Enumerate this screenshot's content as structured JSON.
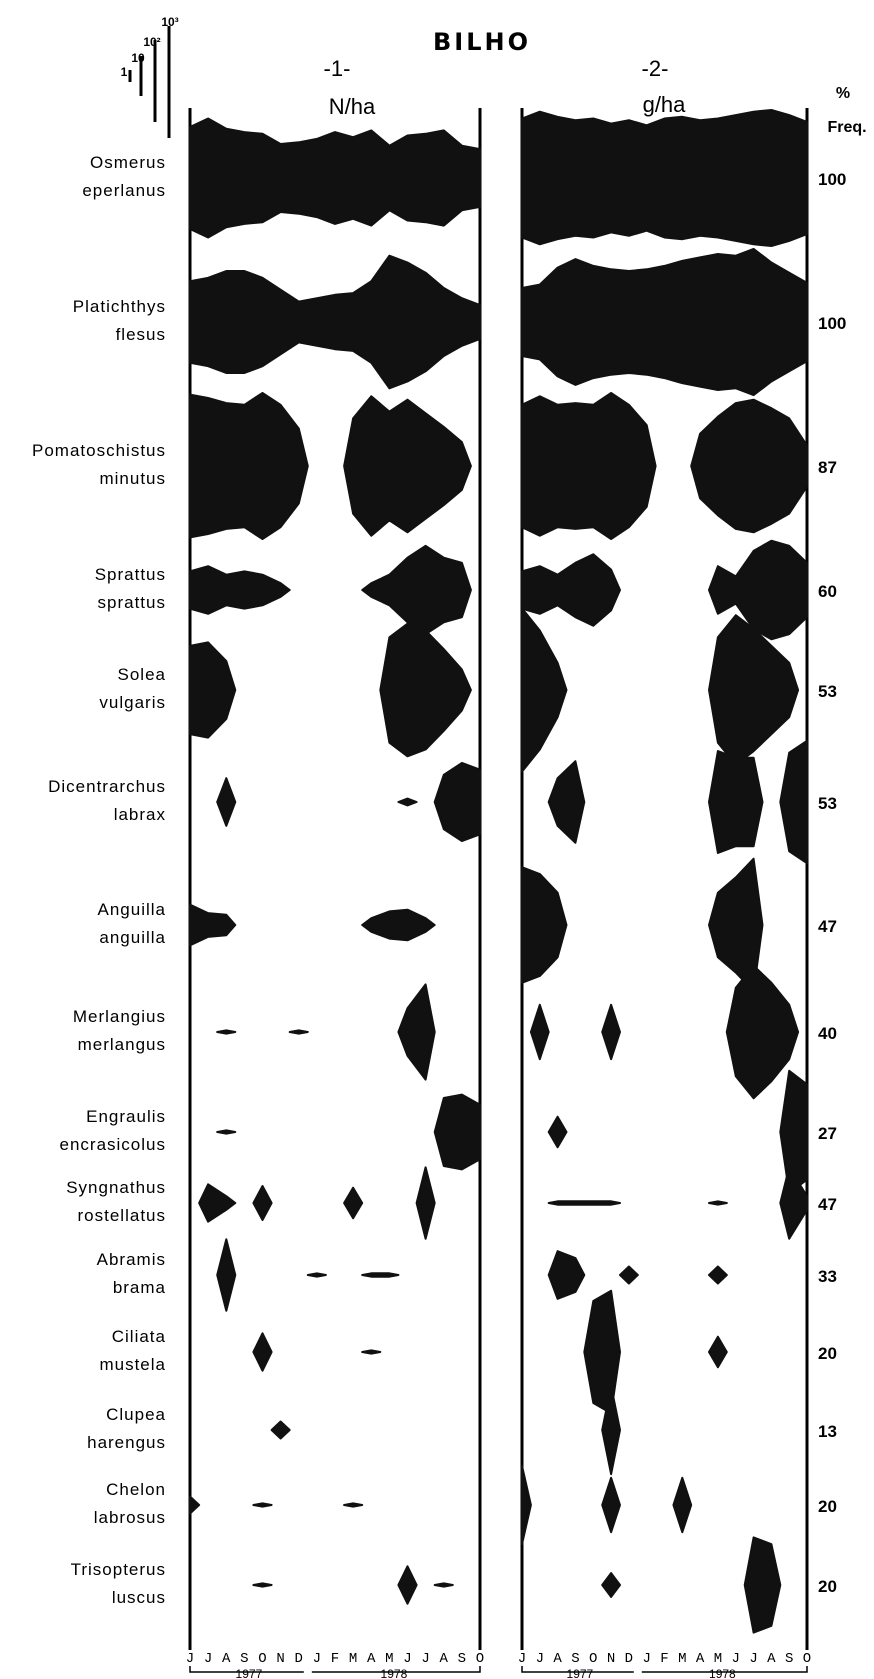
{
  "chart_data": {
    "type": "kite",
    "title": "BILHO",
    "scale_labels": [
      "1",
      "10",
      "10²",
      "10³"
    ],
    "panels": [
      {
        "number": "-1-",
        "unit_label": "N/ha",
        "years": [
          "1977",
          "1978"
        ]
      },
      {
        "number": "-2-",
        "unit_label": "g/ha",
        "years": [
          "1977",
          "1978"
        ]
      }
    ],
    "month_labels": [
      "J",
      "J",
      "A",
      "S",
      "O",
      "N",
      "D",
      "J",
      "F",
      "M",
      "A",
      "M",
      "J",
      "J",
      "A",
      "S",
      "O"
    ],
    "freq_header": [
      "%",
      "Freq."
    ],
    "species": [
      {
        "line1": "Osmerus",
        "line2": "eperlanus",
        "freq": "100",
        "n": [
          3.0,
          3.5,
          2.9,
          2.7,
          2.6,
          2.0,
          2.1,
          2.3,
          2.7,
          2.4,
          2.8,
          1.9,
          2.5,
          2.6,
          2.8,
          1.9,
          1.7
        ],
        "g": [
          3.5,
          3.9,
          3.6,
          3.4,
          3.5,
          3.2,
          3.4,
          3.1,
          3.5,
          3.6,
          3.4,
          3.5,
          3.7,
          3.9,
          4.0,
          3.7,
          3.3
        ]
      },
      {
        "line1": "Platichthys",
        "line2": "flesus",
        "freq": "100",
        "n": [
          2.4,
          2.6,
          3.0,
          3.0,
          2.6,
          1.9,
          1.2,
          1.4,
          1.6,
          1.7,
          2.4,
          3.9,
          3.5,
          2.9,
          2.0,
          1.4,
          1.0
        ],
        "g": [
          2.0,
          2.2,
          3.2,
          3.7,
          3.3,
          3.1,
          3.0,
          3.1,
          3.3,
          3.6,
          3.8,
          4.0,
          3.9,
          4.3,
          3.5,
          2.9,
          2.3
        ]
      },
      {
        "line1": "Pomatoschistus",
        "line2": "minutus",
        "freq": "87",
        "n": [
          4.2,
          4.0,
          3.7,
          3.6,
          4.3,
          3.6,
          2.2,
          0,
          0,
          2.8,
          4.1,
          3.2,
          3.9,
          3.1,
          2.3,
          1.4,
          0
        ],
        "g": [
          3.6,
          4.1,
          3.6,
          3.7,
          3.6,
          4.3,
          3.6,
          2.4,
          0,
          0,
          1.9,
          2.9,
          3.7,
          3.9,
          3.4,
          2.8,
          1.2
        ]
      },
      {
        "line1": "Sprattus",
        "line2": "sprattus",
        "freq": "60",
        "n": [
          1.1,
          1.4,
          0.9,
          1.1,
          0.9,
          0.4,
          0,
          0,
          0,
          0,
          0.4,
          0.9,
          1.9,
          2.6,
          1.9,
          1.6,
          0
        ],
        "g": [
          1.1,
          1.4,
          0.9,
          1.6,
          2.1,
          1.2,
          0,
          0,
          0,
          0,
          0,
          1.4,
          0.8,
          2.3,
          2.9,
          2.6,
          1.6
        ]
      },
      {
        "line1": "Solea",
        "line2": "vulgaris",
        "freq": "53",
        "n": [
          2.6,
          2.8,
          1.7,
          0,
          0,
          0,
          0,
          0,
          0,
          0,
          0,
          3.1,
          3.9,
          3.5,
          2.4,
          1.2,
          0
        ],
        "g": [
          4.8,
          3.5,
          1.6,
          0,
          0,
          0,
          0,
          0,
          0,
          0,
          0,
          3.1,
          4.4,
          3.6,
          2.6,
          1.6,
          0
        ]
      },
      {
        "line1": "Dicentrarchus",
        "line2": "labrax",
        "freq": "53",
        "n": [
          0,
          0,
          1.4,
          0,
          0,
          0,
          0,
          0,
          0,
          0,
          0,
          0,
          0.2,
          0,
          1.6,
          2.3,
          1.9
        ],
        "g": [
          0,
          0,
          1.4,
          2.4,
          0,
          0,
          0,
          0,
          0,
          0,
          0,
          3.0,
          2.6,
          2.6,
          0,
          2.9,
          3.6
        ]
      },
      {
        "line1": "Anguilla",
        "line2": "anguilla",
        "freq": "47",
        "n": [
          1.2,
          0.7,
          0.6,
          0,
          0,
          0,
          0,
          0,
          0,
          0,
          0.4,
          0.8,
          0.9,
          0.4,
          0,
          0,
          0
        ],
        "g": [
          3.4,
          3.0,
          1.9,
          0,
          0,
          0,
          0,
          0,
          0,
          0,
          0,
          1.9,
          2.8,
          3.9,
          0,
          0,
          0
        ]
      },
      {
        "line1": "Merlangius",
        "line2": "merlangus",
        "freq": "40",
        "n": [
          0,
          0,
          0.1,
          0,
          0,
          0,
          0.1,
          0,
          0,
          0,
          0,
          0,
          1.4,
          2.8,
          0,
          0,
          0
        ],
        "g": [
          0,
          1.6,
          0,
          0,
          0,
          1.6,
          0,
          0,
          0,
          0,
          0,
          0,
          2.6,
          3.9,
          2.9,
          1.6,
          0
        ]
      },
      {
        "line1": "Engraulis",
        "line2": "encrasicolus",
        "freq": "27",
        "n": [
          0,
          0,
          0.1,
          0,
          0,
          0,
          0,
          0,
          0,
          0,
          0,
          0,
          0,
          0,
          2.0,
          2.2,
          1.6
        ],
        "g": [
          0,
          0,
          0.9,
          0,
          0,
          0,
          0,
          0,
          0,
          0,
          0,
          0,
          0,
          0,
          0,
          3.6,
          2.8
        ]
      },
      {
        "line1": "Syngnathus",
        "line2": "rostellatus",
        "freq": "47",
        "n": [
          0,
          1.1,
          0.4,
          0,
          1.0,
          0,
          0,
          0,
          0,
          0.9,
          0,
          0,
          0,
          2.1,
          0,
          0,
          0
        ],
        "g": [
          0,
          0,
          0.1,
          0.1,
          0.1,
          0.1,
          0,
          0,
          0,
          0,
          0,
          0.1,
          0,
          0,
          0,
          2.1,
          0.4
        ]
      },
      {
        "line1": "Abramis",
        "line2": "brama",
        "freq": "33",
        "n": [
          0,
          0,
          2.1,
          0,
          0,
          0,
          0,
          0.1,
          0,
          0,
          0.1,
          0.1,
          0,
          0,
          0,
          0,
          0
        ],
        "g": [
          0,
          0,
          1.4,
          1.0,
          0,
          0,
          0.5,
          0,
          0,
          0,
          0,
          0.5,
          0,
          0,
          0,
          0,
          0
        ]
      },
      {
        "line1": "Ciliata",
        "line2": "mustela",
        "freq": "20",
        "n": [
          0,
          0,
          0,
          0,
          1.1,
          0,
          0,
          0,
          0,
          0,
          0.1,
          0,
          0,
          0,
          0,
          0,
          0
        ],
        "g": [
          0,
          0,
          0,
          0,
          3.0,
          3.6,
          0,
          0,
          0,
          0,
          0,
          0.9,
          0,
          0,
          0,
          0,
          0
        ]
      },
      {
        "line1": "Clupea",
        "line2": "harengus",
        "freq": "13",
        "n": [
          0,
          0,
          0,
          0,
          0,
          0.5,
          0,
          0,
          0,
          0,
          0,
          0,
          0,
          0,
          0,
          0,
          0
        ],
        "g": [
          0,
          0,
          0,
          0,
          0,
          2.6,
          0,
          0,
          0,
          0,
          0,
          0,
          0,
          0,
          0,
          0,
          0
        ]
      },
      {
        "line1": "Chelon",
        "line2": "labrosus",
        "freq": "20",
        "n": [
          0.5,
          0,
          0,
          0,
          0.1,
          0,
          0,
          0,
          0,
          0.1,
          0,
          0,
          0,
          0,
          0,
          0,
          0
        ],
        "g": [
          2.3,
          0,
          0,
          0,
          0,
          1.6,
          0,
          0,
          0,
          1.6,
          0,
          0,
          0,
          0,
          0,
          0,
          0
        ]
      },
      {
        "line1": "Trisopterus",
        "line2": "luscus",
        "freq": "20",
        "n": [
          0,
          0,
          0,
          0,
          0.1,
          0,
          0,
          0,
          0,
          0,
          0,
          0,
          1.1,
          0,
          0.1,
          0,
          0
        ],
        "g": [
          0,
          0,
          0,
          0,
          0,
          0.7,
          0,
          0,
          0,
          0,
          0,
          0,
          0,
          2.8,
          2.4,
          0,
          0
        ]
      }
    ]
  }
}
